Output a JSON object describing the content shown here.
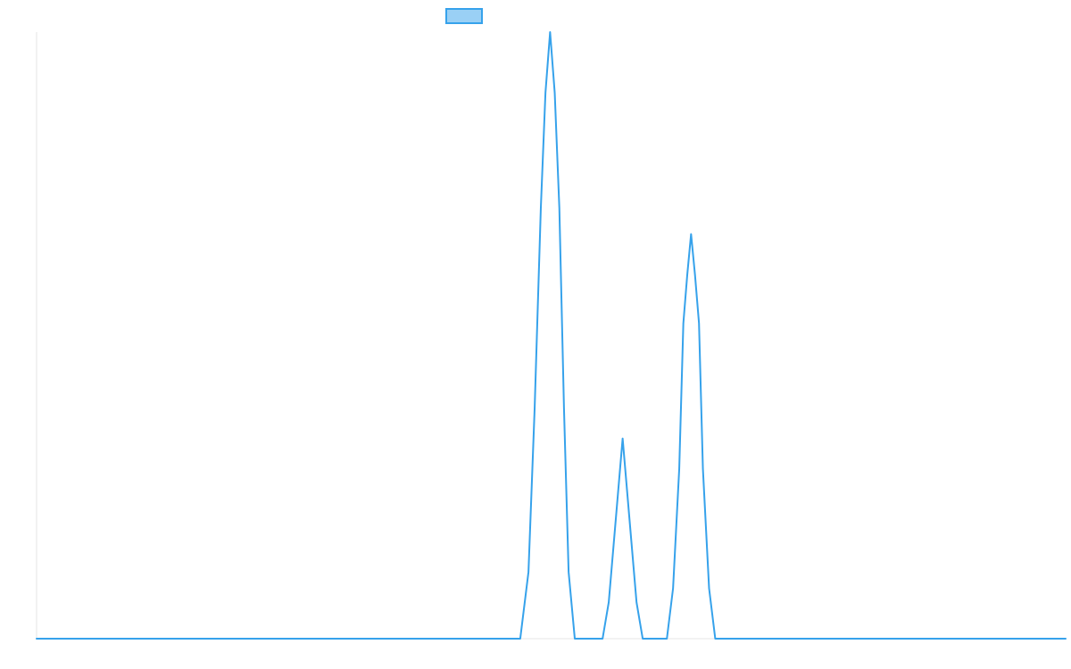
{
  "chart_data": {
    "type": "line",
    "title": "",
    "xlabel": "",
    "ylabel": "",
    "xlim": [
      0,
      1
    ],
    "ylim": [
      0,
      1
    ],
    "grid": false,
    "legend": {
      "position": "top",
      "entries": [
        ""
      ]
    },
    "series": [
      {
        "color": "#36a2eb",
        "fill_color": "#9ad0f5",
        "x": [
          0.0,
          0.47,
          0.478,
          0.484,
          0.49,
          0.4945,
          0.499,
          0.5035,
          0.508,
          0.5125,
          0.517,
          0.523,
          0.529,
          0.537,
          0.545,
          0.55,
          0.556,
          0.563,
          0.5695,
          0.576,
          0.583,
          0.589,
          0.5955,
          0.6075,
          0.6075,
          0.6125,
          0.6185,
          0.6245,
          0.6285,
          0.6323,
          0.636,
          0.6398,
          0.6437,
          0.6475,
          0.6535,
          0.6595,
          0.665,
          0.6705,
          1.0
        ],
        "y": [
          0.0,
          0.0,
          0.11,
          0.38,
          0.71,
          0.9,
          1.0,
          0.9,
          0.71,
          0.38,
          0.11,
          0.0,
          0.0,
          0.0,
          0.0,
          0.0,
          0.06,
          0.2,
          0.33,
          0.2,
          0.06,
          0.0,
          0.0,
          0.0,
          0.0,
          0.0,
          0.083,
          0.28,
          0.52,
          0.6,
          0.667,
          0.6,
          0.52,
          0.28,
          0.083,
          0.0,
          0.0,
          0.0,
          0.0
        ]
      }
    ]
  }
}
